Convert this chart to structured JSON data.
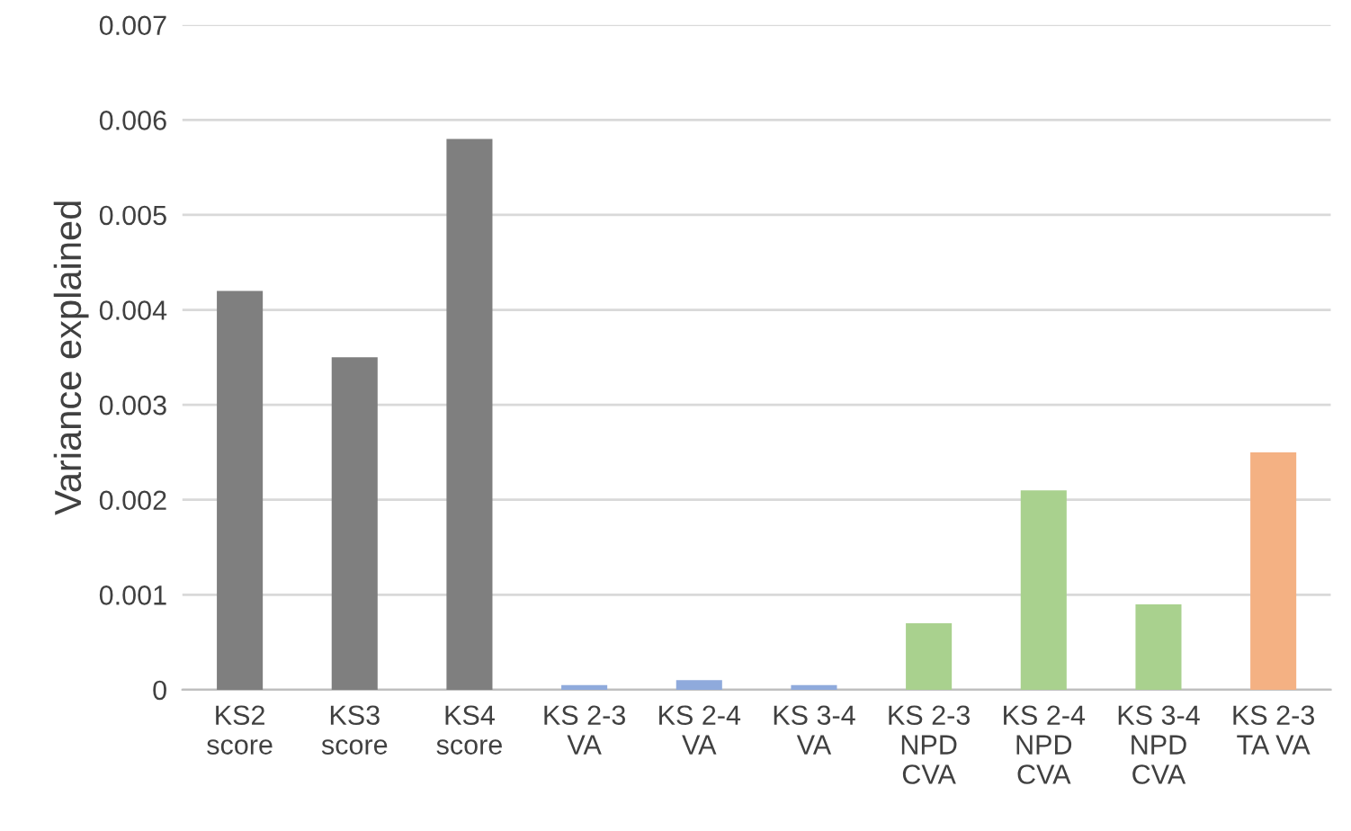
{
  "chart_data": {
    "type": "bar",
    "ylabel": "Variance explained",
    "categories": [
      "KS2\nscore",
      "KS3\nscore",
      "KS4\nscore",
      "KS 2-3\nVA",
      "KS 2-4\nVA",
      "KS 3-4\nVA",
      "KS 2-3\nNPD\nCVA",
      "KS 2-4\nNPD\nCVA",
      "KS 3-4\nNPD\nCVA",
      "KS 2-3\nTA VA"
    ],
    "values": [
      0.0042,
      0.0035,
      0.0058,
      5e-05,
      0.0001,
      5e-05,
      0.0007,
      0.0021,
      0.0009,
      0.0025
    ],
    "colors": [
      "#7f7f7f",
      "#7f7f7f",
      "#7f7f7f",
      "#8faadc",
      "#8faadc",
      "#8faadc",
      "#a9d18e",
      "#a9d18e",
      "#a9d18e",
      "#f4b183"
    ],
    "ylim": [
      0,
      0.007
    ],
    "yticks": [
      0,
      0.001,
      0.002,
      0.003,
      0.004,
      0.005,
      0.006,
      0.007
    ],
    "grid": "y"
  }
}
